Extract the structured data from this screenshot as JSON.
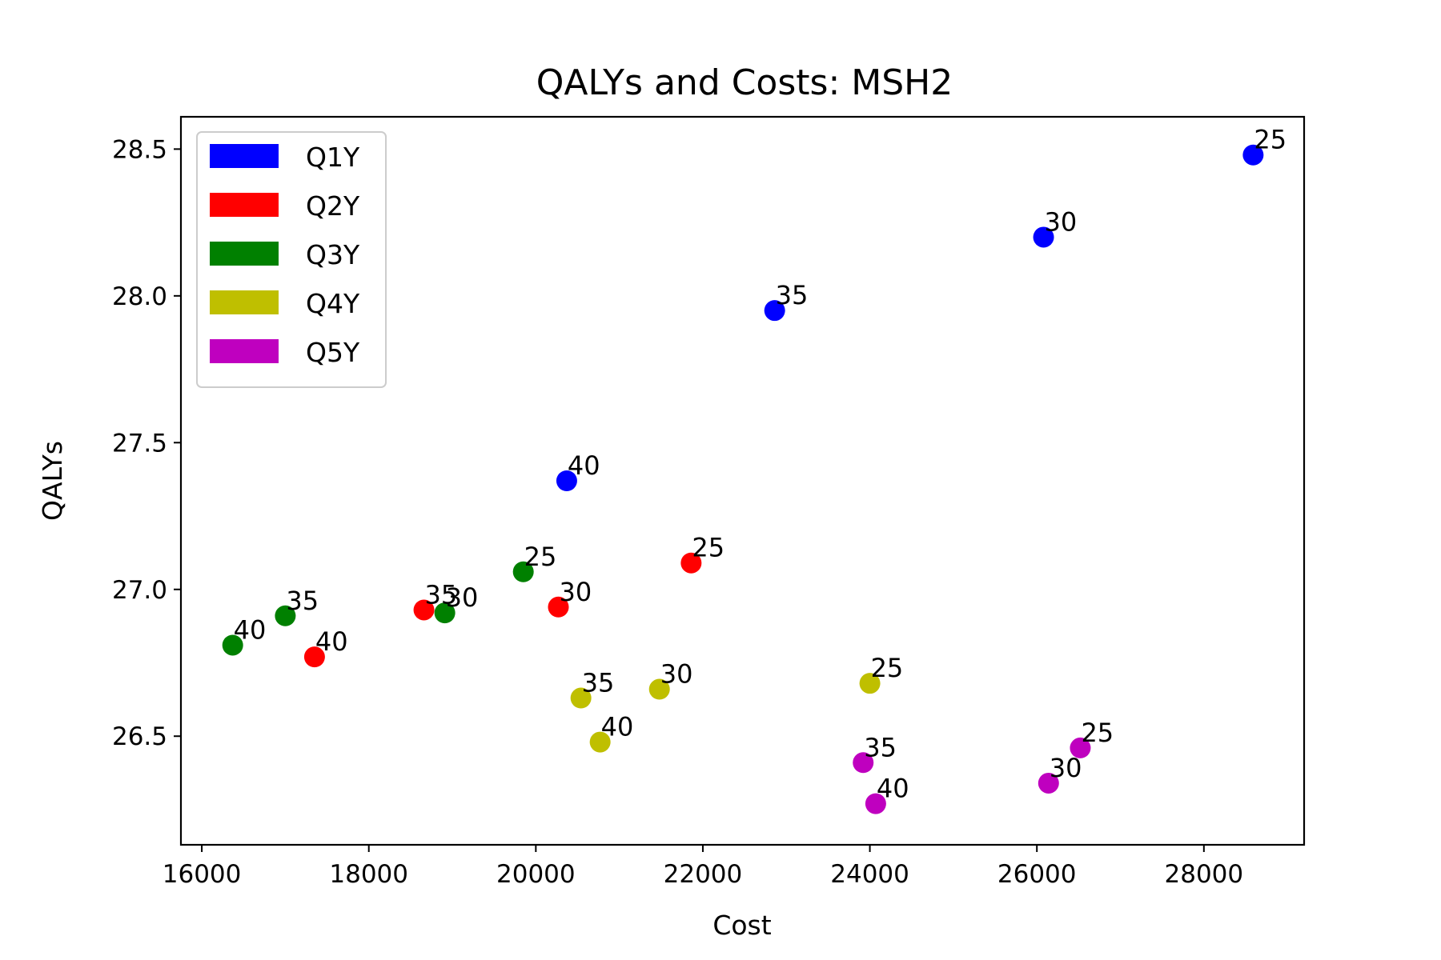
{
  "chart_data": {
    "type": "scatter",
    "title": "QALYs and Costs: MSH2",
    "xlabel": "Cost",
    "ylabel": "QALYs",
    "xlim": [
      15750,
      29200
    ],
    "ylim": [
      26.13,
      28.61
    ],
    "xticks": [
      16000,
      18000,
      20000,
      22000,
      24000,
      26000,
      28000
    ],
    "xtick_labels": [
      "16000",
      "18000",
      "20000",
      "22000",
      "24000",
      "26000",
      "28000"
    ],
    "yticks": [
      26.5,
      27.0,
      27.5,
      28.0,
      28.5
    ],
    "ytick_labels": [
      "26.5",
      "27.0",
      "27.5",
      "28.0",
      "28.5"
    ],
    "grid": false,
    "legend_position": "top-left",
    "series": [
      {
        "name": "Q1Y",
        "color": "#0000ff",
        "points": [
          {
            "x": 28590,
            "y": 28.48,
            "label": "25"
          },
          {
            "x": 26080,
            "y": 28.2,
            "label": "30"
          },
          {
            "x": 22860,
            "y": 27.95,
            "label": "35"
          },
          {
            "x": 20370,
            "y": 27.37,
            "label": "40"
          }
        ]
      },
      {
        "name": "Q2Y",
        "color": "#ff0000",
        "points": [
          {
            "x": 21860,
            "y": 27.09,
            "label": "25"
          },
          {
            "x": 20270,
            "y": 26.94,
            "label": "30"
          },
          {
            "x": 18660,
            "y": 26.93,
            "label": "35"
          },
          {
            "x": 17350,
            "y": 26.77,
            "label": "40"
          }
        ]
      },
      {
        "name": "Q3Y",
        "color": "#008000",
        "points": [
          {
            "x": 19850,
            "y": 27.06,
            "label": "25"
          },
          {
            "x": 18910,
            "y": 26.92,
            "label": "30"
          },
          {
            "x": 17000,
            "y": 26.91,
            "label": "35"
          },
          {
            "x": 16370,
            "y": 26.81,
            "label": "40"
          }
        ]
      },
      {
        "name": "Q4Y",
        "color": "#bfbf00",
        "points": [
          {
            "x": 24000,
            "y": 26.68,
            "label": "25"
          },
          {
            "x": 21480,
            "y": 26.66,
            "label": "30"
          },
          {
            "x": 20540,
            "y": 26.63,
            "label": "35"
          },
          {
            "x": 20770,
            "y": 26.48,
            "label": "40"
          }
        ]
      },
      {
        "name": "Q5Y",
        "color": "#bf00bf",
        "points": [
          {
            "x": 26520,
            "y": 26.46,
            "label": "25"
          },
          {
            "x": 26140,
            "y": 26.34,
            "label": "30"
          },
          {
            "x": 23920,
            "y": 26.41,
            "label": "35"
          },
          {
            "x": 24070,
            "y": 26.27,
            "label": "40"
          }
        ]
      }
    ]
  }
}
